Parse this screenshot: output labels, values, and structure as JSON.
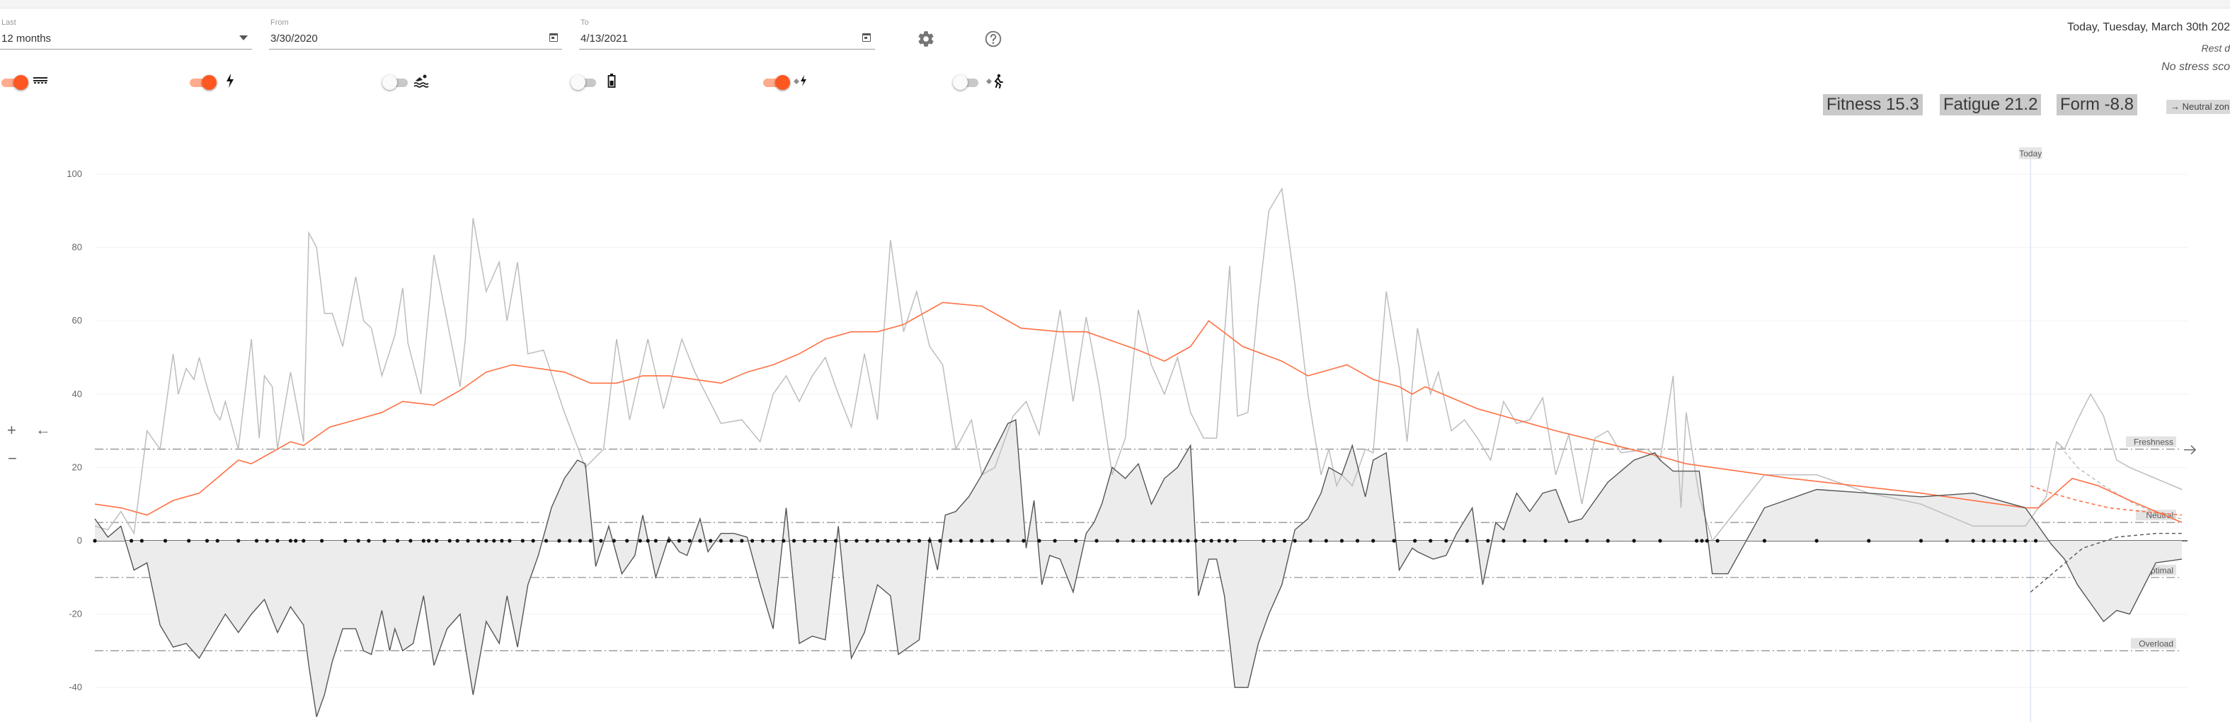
{
  "filters": {
    "last": {
      "label": "Last",
      "value": "12 months"
    },
    "from": {
      "label": "From",
      "value": "3/30/2020"
    },
    "to": {
      "label": "To",
      "value": "4/13/2021"
    }
  },
  "toggles": [
    {
      "icon": "running-icon",
      "on": true
    },
    {
      "icon": "cycling-power-icon",
      "on": true
    },
    {
      "icon": "swimming-icon",
      "on": false
    },
    {
      "icon": "battery-icon",
      "on": false
    },
    {
      "icon": "estimated-power-icon",
      "on": true
    },
    {
      "icon": "estimated-running-icon",
      "on": false
    }
  ],
  "status": {
    "date": "Today, Tuesday, March 30th 202",
    "rest": "Rest d",
    "stress": "No stress sco"
  },
  "metrics": {
    "fitness": "Fitness 15.3",
    "fatigue": "Fatigue 21.2",
    "form": "Form -8.8",
    "zone": "→ Neutral zon"
  },
  "side_controls": {
    "plus": "+",
    "minus": "−",
    "back": "←"
  },
  "chart_data": {
    "type": "line",
    "yticks": [
      100,
      80,
      60,
      40,
      20,
      0,
      -20,
      -40
    ],
    "ylim": [
      -48,
      104
    ],
    "today_label": "Today",
    "colors": {
      "fitness": "#ff7043",
      "fatigue": "#bdbdbd",
      "form": "#555555",
      "formFill": "#ececec"
    },
    "levels": [
      {
        "name": "Freshness",
        "value": 25
      },
      {
        "name": "Neutral",
        "value": 5
      },
      {
        "name": "Optimal",
        "value": -10
      },
      {
        "name": "Overload",
        "value": -30
      }
    ],
    "fitness": [
      [
        0,
        10
      ],
      [
        10,
        9
      ],
      [
        20,
        7
      ],
      [
        30,
        11
      ],
      [
        40,
        13
      ],
      [
        50,
        19
      ],
      [
        55,
        22
      ],
      [
        60,
        21
      ],
      [
        70,
        25
      ],
      [
        75,
        27
      ],
      [
        80,
        26
      ],
      [
        90,
        31
      ],
      [
        100,
        33
      ],
      [
        110,
        35
      ],
      [
        118,
        38
      ],
      [
        130,
        37
      ],
      [
        140,
        41
      ],
      [
        150,
        46
      ],
      [
        160,
        48
      ],
      [
        170,
        47
      ],
      [
        180,
        46
      ],
      [
        190,
        43
      ],
      [
        200,
        43
      ],
      [
        210,
        45
      ],
      [
        220,
        45
      ],
      [
        230,
        44
      ],
      [
        240,
        43
      ],
      [
        250,
        46
      ],
      [
        260,
        48
      ],
      [
        270,
        51
      ],
      [
        280,
        55
      ],
      [
        290,
        57
      ],
      [
        300,
        57
      ],
      [
        310,
        59
      ],
      [
        315,
        61
      ],
      [
        325,
        65
      ],
      [
        340,
        64
      ],
      [
        355,
        58
      ],
      [
        370,
        57
      ],
      [
        380,
        57
      ],
      [
        392,
        54
      ],
      [
        400,
        52
      ],
      [
        410,
        49
      ],
      [
        420,
        53
      ],
      [
        427,
        60
      ],
      [
        440,
        53
      ],
      [
        455,
        49
      ],
      [
        465,
        45
      ],
      [
        480,
        48
      ],
      [
        490,
        44
      ],
      [
        500,
        42
      ],
      [
        505,
        40
      ],
      [
        510,
        42
      ],
      [
        530,
        36
      ],
      [
        560,
        30
      ],
      [
        600,
        23
      ],
      [
        610,
        21
      ],
      [
        650,
        17
      ],
      [
        700,
        13
      ],
      [
        740,
        9
      ],
      [
        745,
        9
      ],
      [
        750,
        12
      ],
      [
        758,
        17
      ],
      [
        768,
        15
      ],
      [
        780,
        11
      ],
      [
        800,
        5
      ]
    ],
    "fatigue": [
      [
        0,
        4
      ],
      [
        5,
        3
      ],
      [
        10,
        8
      ],
      [
        15,
        2
      ],
      [
        20,
        30
      ],
      [
        25,
        25
      ],
      [
        30,
        51
      ],
      [
        32,
        40
      ],
      [
        35,
        47
      ],
      [
        38,
        44
      ],
      [
        40,
        50
      ],
      [
        43,
        42
      ],
      [
        46,
        35
      ],
      [
        48,
        33
      ],
      [
        50,
        38
      ],
      [
        55,
        25
      ],
      [
        60,
        55
      ],
      [
        63,
        28
      ],
      [
        65,
        45
      ],
      [
        68,
        42
      ],
      [
        70,
        25
      ],
      [
        75,
        46
      ],
      [
        80,
        27
      ],
      [
        82,
        84
      ],
      [
        85,
        80
      ],
      [
        88,
        62
      ],
      [
        91,
        62
      ],
      [
        95,
        53
      ],
      [
        100,
        72
      ],
      [
        103,
        60
      ],
      [
        106,
        58
      ],
      [
        110,
        45
      ],
      [
        115,
        56
      ],
      [
        118,
        69
      ],
      [
        120,
        54
      ],
      [
        125,
        40
      ],
      [
        130,
        78
      ],
      [
        135,
        60
      ],
      [
        140,
        42
      ],
      [
        142,
        55
      ],
      [
        145,
        88
      ],
      [
        150,
        68
      ],
      [
        155,
        76
      ],
      [
        158,
        60
      ],
      [
        162,
        76
      ],
      [
        166,
        51
      ],
      [
        172,
        52
      ],
      [
        180,
        35
      ],
      [
        188,
        20
      ],
      [
        195,
        25
      ],
      [
        200,
        55
      ],
      [
        205,
        33
      ],
      [
        212,
        55
      ],
      [
        218,
        36
      ],
      [
        225,
        55
      ],
      [
        230,
        46
      ],
      [
        240,
        32
      ],
      [
        248,
        33
      ],
      [
        255,
        27
      ],
      [
        260,
        40
      ],
      [
        265,
        45
      ],
      [
        270,
        38
      ],
      [
        275,
        45
      ],
      [
        280,
        50
      ],
      [
        285,
        40
      ],
      [
        290,
        31
      ],
      [
        295,
        51
      ],
      [
        300,
        33
      ],
      [
        305,
        82
      ],
      [
        310,
        57
      ],
      [
        315,
        68
      ],
      [
        320,
        53
      ],
      [
        325,
        48
      ],
      [
        330,
        25
      ],
      [
        336,
        33
      ],
      [
        340,
        18
      ],
      [
        345,
        20
      ],
      [
        352,
        34
      ],
      [
        357,
        38
      ],
      [
        362,
        29
      ],
      [
        370,
        63
      ],
      [
        375,
        38
      ],
      [
        380,
        61
      ],
      [
        385,
        42
      ],
      [
        390,
        18
      ],
      [
        395,
        28
      ],
      [
        400,
        63
      ],
      [
        405,
        48
      ],
      [
        410,
        40
      ],
      [
        415,
        50
      ],
      [
        420,
        35
      ],
      [
        425,
        28
      ],
      [
        430,
        28
      ],
      [
        435,
        75
      ],
      [
        438,
        34
      ],
      [
        442,
        35
      ],
      [
        446,
        65
      ],
      [
        450,
        90
      ],
      [
        455,
        96
      ],
      [
        460,
        70
      ],
      [
        465,
        40
      ],
      [
        470,
        18
      ],
      [
        473,
        25
      ],
      [
        476,
        15
      ],
      [
        478,
        18
      ],
      [
        482,
        15
      ],
      [
        487,
        25
      ],
      [
        490,
        24
      ],
      [
        495,
        68
      ],
      [
        500,
        47
      ],
      [
        503,
        27
      ],
      [
        507,
        58
      ],
      [
        512,
        40
      ],
      [
        515,
        46
      ],
      [
        520,
        30
      ],
      [
        525,
        33
      ],
      [
        530,
        28
      ],
      [
        535,
        22
      ],
      [
        540,
        38
      ],
      [
        545,
        32
      ],
      [
        550,
        33
      ],
      [
        555,
        39
      ],
      [
        560,
        18
      ],
      [
        565,
        29
      ],
      [
        570,
        10
      ],
      [
        575,
        28
      ],
      [
        580,
        30
      ],
      [
        585,
        24
      ],
      [
        595,
        25
      ],
      [
        600,
        22
      ],
      [
        605,
        45
      ],
      [
        608,
        9
      ],
      [
        610,
        35
      ],
      [
        615,
        12
      ],
      [
        620,
        0
      ],
      [
        630,
        9
      ],
      [
        640,
        18
      ],
      [
        660,
        18
      ],
      [
        680,
        13
      ],
      [
        700,
        10
      ],
      [
        720,
        4
      ],
      [
        740,
        4
      ],
      [
        748,
        12
      ],
      [
        752,
        27
      ],
      [
        755,
        25
      ],
      [
        760,
        33
      ],
      [
        765,
        40
      ],
      [
        770,
        34
      ],
      [
        775,
        22
      ],
      [
        780,
        20
      ],
      [
        800,
        14
      ]
    ],
    "form": [
      [
        0,
        6
      ],
      [
        5,
        1
      ],
      [
        10,
        4
      ],
      [
        15,
        -8
      ],
      [
        20,
        -6
      ],
      [
        25,
        -23
      ],
      [
        30,
        -29
      ],
      [
        35,
        -28
      ],
      [
        40,
        -32
      ],
      [
        45,
        -26
      ],
      [
        50,
        -20
      ],
      [
        55,
        -25
      ],
      [
        60,
        -20
      ],
      [
        65,
        -16
      ],
      [
        70,
        -25
      ],
      [
        75,
        -18
      ],
      [
        80,
        -23
      ],
      [
        82,
        -34
      ],
      [
        85,
        -48
      ],
      [
        88,
        -42
      ],
      [
        91,
        -33
      ],
      [
        95,
        -24
      ],
      [
        100,
        -24
      ],
      [
        103,
        -30
      ],
      [
        106,
        -31
      ],
      [
        110,
        -19
      ],
      [
        113,
        -30
      ],
      [
        115,
        -24
      ],
      [
        118,
        -30
      ],
      [
        122,
        -28
      ],
      [
        126,
        -15
      ],
      [
        130,
        -34
      ],
      [
        135,
        -24
      ],
      [
        140,
        -20
      ],
      [
        145,
        -42
      ],
      [
        150,
        -22
      ],
      [
        155,
        -28
      ],
      [
        158,
        -15
      ],
      [
        162,
        -29
      ],
      [
        166,
        -12
      ],
      [
        170,
        -4
      ],
      [
        175,
        9
      ],
      [
        180,
        17
      ],
      [
        185,
        22
      ],
      [
        188,
        21
      ],
      [
        192,
        -7
      ],
      [
        197,
        4
      ],
      [
        202,
        -9
      ],
      [
        207,
        -4
      ],
      [
        210,
        7
      ],
      [
        215,
        -10
      ],
      [
        220,
        1
      ],
      [
        224,
        -3
      ],
      [
        227,
        -4
      ],
      [
        232,
        6
      ],
      [
        235,
        -3
      ],
      [
        240,
        2
      ],
      [
        245,
        2
      ],
      [
        250,
        1
      ],
      [
        255,
        -12
      ],
      [
        260,
        -24
      ],
      [
        265,
        9
      ],
      [
        270,
        -28
      ],
      [
        275,
        -26
      ],
      [
        280,
        -27
      ],
      [
        285,
        4
      ],
      [
        290,
        -32
      ],
      [
        295,
        -25
      ],
      [
        300,
        -12
      ],
      [
        305,
        -15
      ],
      [
        308,
        -31
      ],
      [
        312,
        -29
      ],
      [
        316,
        -27
      ],
      [
        320,
        1
      ],
      [
        323,
        -8
      ],
      [
        326,
        7
      ],
      [
        330,
        8
      ],
      [
        335,
        12
      ],
      [
        340,
        18
      ],
      [
        345,
        25
      ],
      [
        350,
        32
      ],
      [
        353,
        33
      ],
      [
        357,
        -2
      ],
      [
        360,
        11
      ],
      [
        363,
        -12
      ],
      [
        366,
        -4
      ],
      [
        370,
        -5
      ],
      [
        375,
        -14
      ],
      [
        380,
        2
      ],
      [
        383,
        5
      ],
      [
        386,
        10
      ],
      [
        390,
        20
      ],
      [
        395,
        17
      ],
      [
        400,
        21
      ],
      [
        405,
        10
      ],
      [
        410,
        17
      ],
      [
        415,
        20
      ],
      [
        420,
        26
      ],
      [
        423,
        -15
      ],
      [
        427,
        -5
      ],
      [
        430,
        -5
      ],
      [
        433,
        -15
      ],
      [
        437,
        -40
      ],
      [
        442,
        -40
      ],
      [
        446,
        -28
      ],
      [
        450,
        -20
      ],
      [
        455,
        -12
      ],
      [
        460,
        3
      ],
      [
        465,
        6
      ],
      [
        470,
        13
      ],
      [
        473,
        20
      ],
      [
        478,
        18
      ],
      [
        482,
        26
      ],
      [
        487,
        12
      ],
      [
        490,
        22
      ],
      [
        495,
        24
      ],
      [
        500,
        -8
      ],
      [
        505,
        -2
      ],
      [
        507,
        -3
      ],
      [
        513,
        -5
      ],
      [
        518,
        -4
      ],
      [
        522,
        2
      ],
      [
        528,
        9
      ],
      [
        532,
        -12
      ],
      [
        537,
        5
      ],
      [
        540,
        3
      ],
      [
        545,
        13
      ],
      [
        550,
        8
      ],
      [
        555,
        13
      ],
      [
        560,
        14
      ],
      [
        565,
        5
      ],
      [
        570,
        6
      ],
      [
        580,
        16
      ],
      [
        590,
        22
      ],
      [
        598,
        24
      ],
      [
        600,
        22
      ],
      [
        605,
        19
      ],
      [
        615,
        19
      ],
      [
        620,
        -9
      ],
      [
        626,
        -9
      ],
      [
        640,
        9
      ],
      [
        660,
        14
      ],
      [
        680,
        13
      ],
      [
        700,
        12
      ],
      [
        720,
        13
      ],
      [
        740,
        9
      ],
      [
        750,
        -1
      ],
      [
        755,
        -5
      ],
      [
        760,
        -12
      ],
      [
        765,
        -17
      ],
      [
        770,
        -22
      ],
      [
        775,
        -19
      ],
      [
        780,
        -20
      ],
      [
        785,
        -13
      ],
      [
        790,
        -6
      ],
      [
        800,
        -5
      ]
    ],
    "fitness_projection": [
      [
        742,
        15
      ],
      [
        750,
        13
      ],
      [
        760,
        11
      ],
      [
        772,
        9
      ],
      [
        785,
        8
      ],
      [
        800,
        7
      ]
    ],
    "fatigue_projection": [
      [
        752,
        27
      ],
      [
        760,
        20
      ],
      [
        770,
        15
      ],
      [
        782,
        10
      ],
      [
        792,
        7
      ],
      [
        800,
        6
      ]
    ],
    "form_projection": [
      [
        742,
        -14
      ],
      [
        752,
        -8
      ],
      [
        762,
        -2
      ],
      [
        775,
        1
      ],
      [
        790,
        2
      ],
      [
        800,
        2
      ]
    ],
    "activity_days": [
      0,
      14,
      18,
      27,
      36,
      43,
      47,
      55,
      62,
      66,
      70,
      75,
      77,
      80,
      87,
      96,
      101,
      105,
      111,
      116,
      121,
      126,
      128,
      131,
      136,
      139,
      143,
      147,
      150,
      153,
      156,
      159,
      164,
      168,
      173,
      178,
      182,
      186,
      190,
      194,
      199,
      204,
      209,
      212,
      215,
      220,
      224,
      228,
      232,
      236,
      240,
      244,
      248,
      252,
      256,
      260,
      264,
      268,
      272,
      276,
      280,
      284,
      288,
      292,
      296,
      300,
      304,
      308,
      312,
      316,
      320,
      324,
      328,
      332,
      336,
      340,
      344,
      350,
      356,
      362,
      368,
      376,
      384,
      392,
      398,
      402,
      406,
      410,
      413,
      416,
      419,
      422,
      425,
      428,
      431,
      434,
      437,
      448,
      452,
      456,
      460,
      466,
      472,
      478,
      484,
      490,
      498,
      506,
      512,
      518,
      526,
      534,
      540,
      548,
      556,
      564,
      572,
      580,
      590,
      600,
      614,
      616,
      618,
      622,
      640,
      660,
      680,
      700,
      710,
      720,
      724,
      728,
      732,
      736,
      740,
      744
    ]
  }
}
